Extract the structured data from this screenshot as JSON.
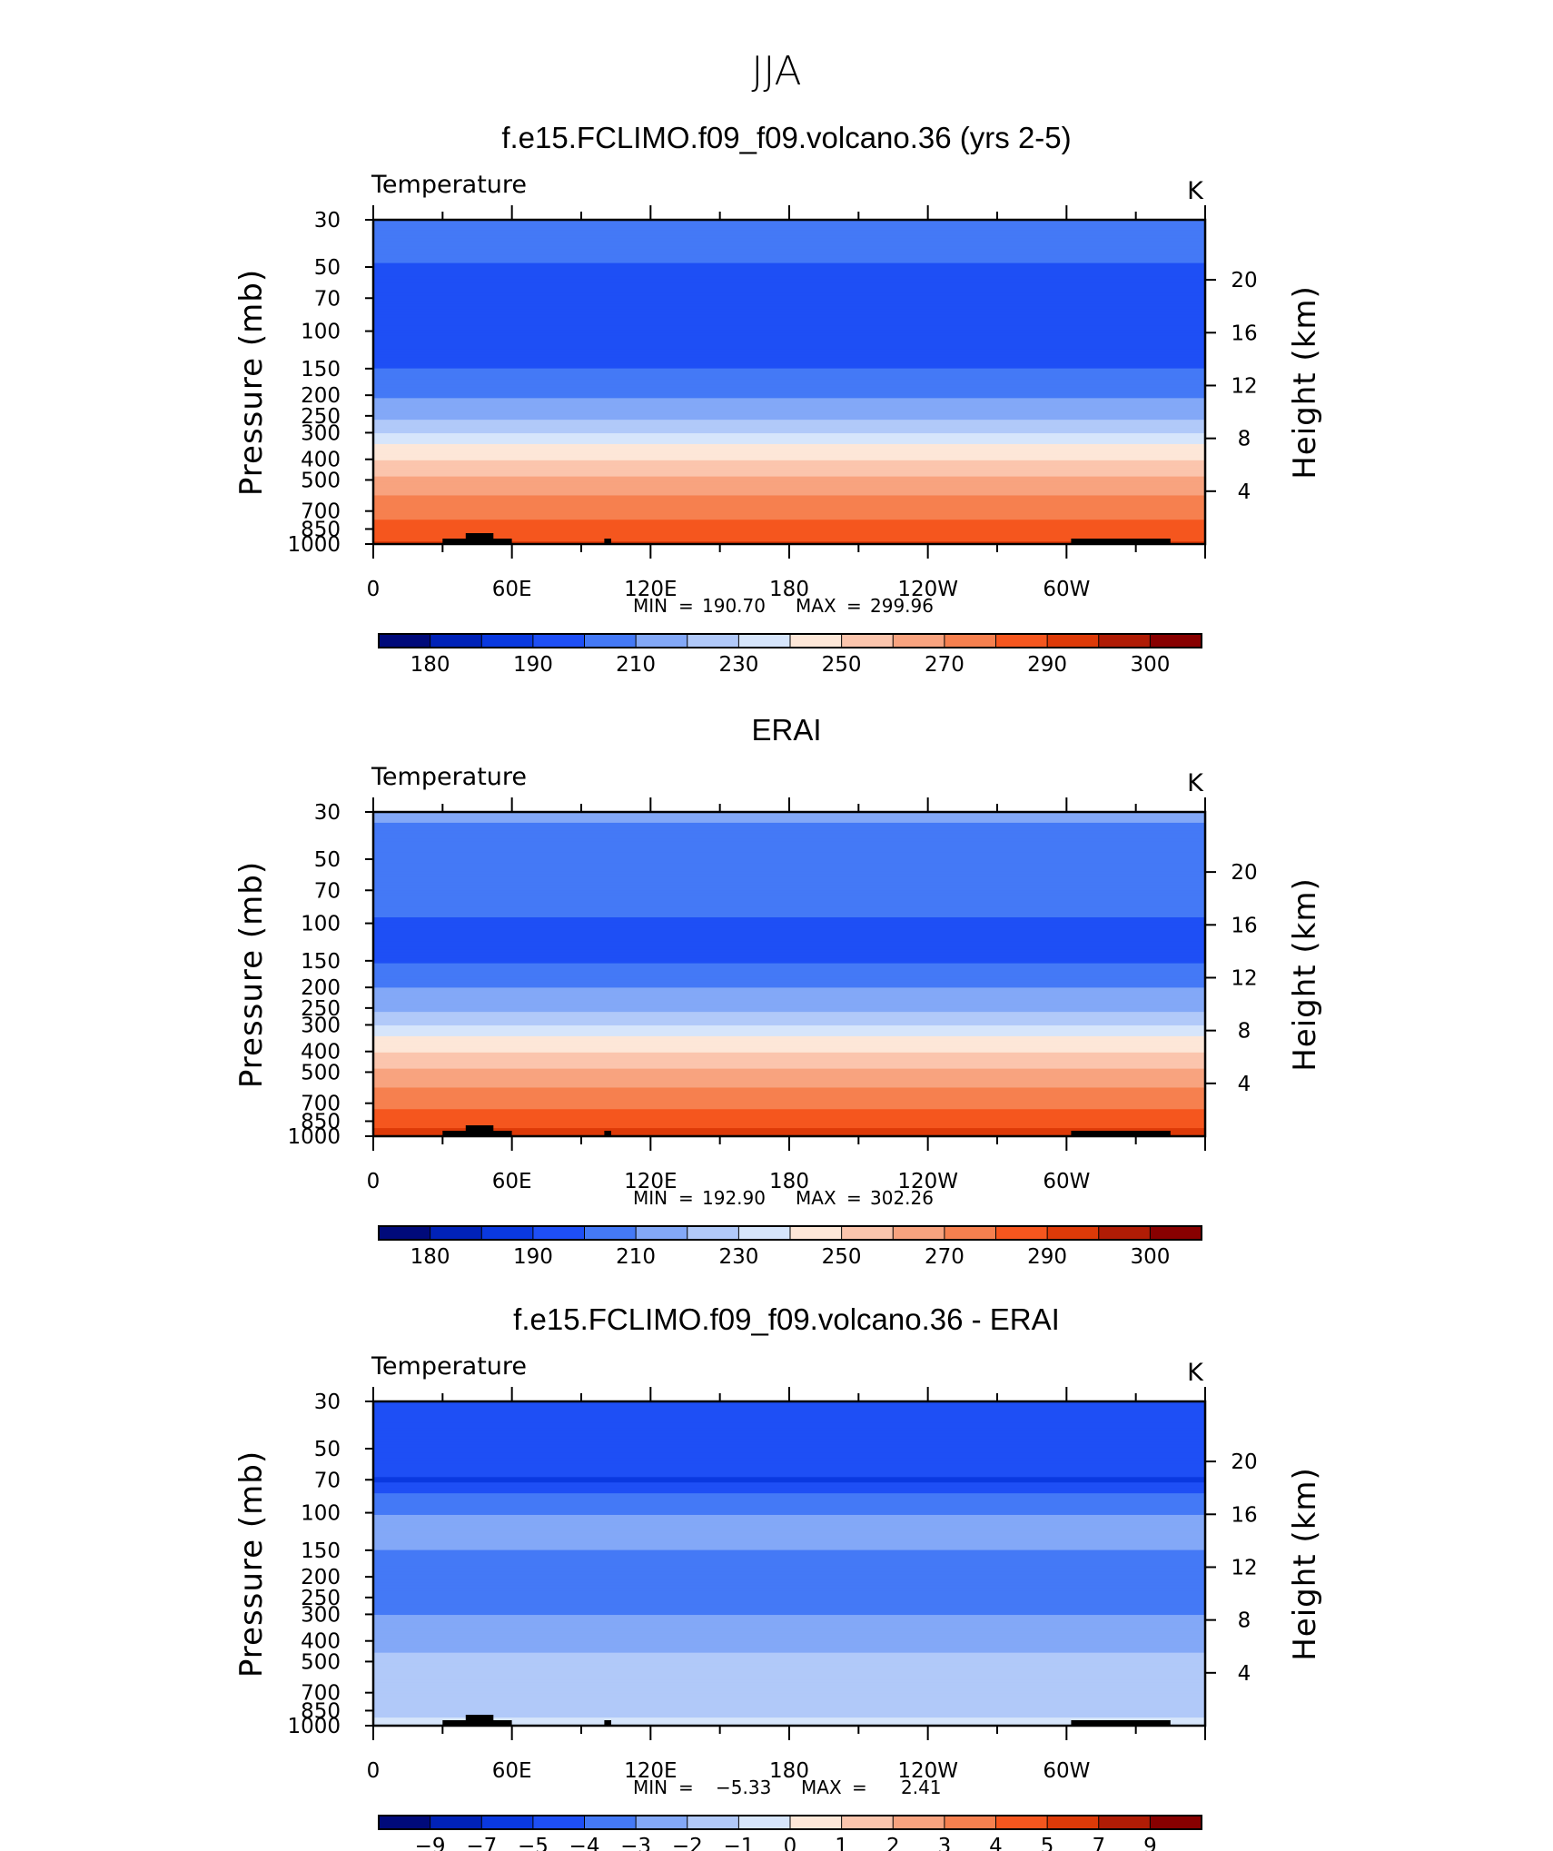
{
  "figure": {
    "title": "JJA",
    "panel_titles": [
      "f.e15.FCLIMO.f09_f09.volcano.36 (yrs 2-5)",
      "ERAI",
      "f.e15.FCLIMO.f09_f09.volcano.36 - ERAI"
    ],
    "variable_label": "Temperature",
    "units_label": "K",
    "yaxis_left_label": "Pressure (mb)",
    "yaxis_right_label": "Height (km)",
    "stats": [
      {
        "min_label": "MIN",
        "min": "190.70",
        "max_label": "MAX",
        "max": "299.96"
      },
      {
        "min_label": "MIN",
        "min": "192.90",
        "max_label": "MAX",
        "max": "302.26"
      },
      {
        "min_label": "MIN",
        "min": "−5.33",
        "max_label": "MAX",
        "max": "2.41"
      }
    ]
  },
  "chart_data": [
    {
      "type": "heatmap",
      "title": "f.e15.FCLIMO.f09_f09.volcano.36 (yrs 2-5)",
      "x_tick_labels": [
        "0",
        "60E",
        "120E",
        "180",
        "120W",
        "60W"
      ],
      "x_tick_lon": [
        0,
        60,
        120,
        180,
        240,
        300
      ],
      "x_range": [
        0,
        360
      ],
      "y_tick_labels": [
        "30",
        "50",
        "70",
        "100",
        "150",
        "200",
        "250",
        "300",
        "400",
        "500",
        "700",
        "850",
        "1000"
      ],
      "y_range_mb": [
        1000,
        30
      ],
      "y_log": true,
      "right_tick_labels": [
        "20",
        "16",
        "12",
        "8",
        "4"
      ],
      "contour_levels": [
        175,
        180,
        185,
        190,
        200,
        210,
        220,
        230,
        240,
        250,
        260,
        270,
        280,
        290,
        295,
        300
      ],
      "colorbar_labels": [
        "180",
        "190",
        "210",
        "230",
        "250",
        "270",
        "290",
        "300"
      ],
      "colorbar_label_index": [
        1,
        3,
        5,
        7,
        9,
        11,
        13,
        15
      ],
      "layers": [
        {
          "p": 30,
          "v": 205
        },
        {
          "p": 40,
          "v": 202
        },
        {
          "p": 70,
          "v": 196
        },
        {
          "p": 130,
          "v": 196
        },
        {
          "p": 170,
          "v": 204
        },
        {
          "p": 240,
          "v": 214
        },
        {
          "p": 290,
          "v": 226
        },
        {
          "p": 340,
          "v": 241
        },
        {
          "p": 420,
          "v": 252
        },
        {
          "p": 500,
          "v": 262
        },
        {
          "p": 620,
          "v": 272
        },
        {
          "p": 780,
          "v": 281
        },
        {
          "p": 1000,
          "v": 291
        }
      ]
    },
    {
      "type": "heatmap",
      "title": "ERAI",
      "x_tick_labels": [
        "0",
        "60E",
        "120E",
        "180",
        "120W",
        "60W"
      ],
      "x_tick_lon": [
        0,
        60,
        120,
        180,
        240,
        300
      ],
      "x_range": [
        0,
        360
      ],
      "y_tick_labels": [
        "30",
        "50",
        "70",
        "100",
        "150",
        "200",
        "250",
        "300",
        "400",
        "500",
        "700",
        "850",
        "1000"
      ],
      "y_range_mb": [
        1000,
        30
      ],
      "y_log": true,
      "right_tick_labels": [
        "20",
        "16",
        "12",
        "8",
        "4"
      ],
      "contour_levels": [
        175,
        180,
        185,
        190,
        200,
        210,
        220,
        230,
        240,
        250,
        260,
        270,
        280,
        290,
        295,
        300
      ],
      "colorbar_labels": [
        "180",
        "190",
        "210",
        "230",
        "250",
        "270",
        "290",
        "300"
      ],
      "colorbar_label_index": [
        1,
        3,
        5,
        7,
        9,
        11,
        13,
        15
      ],
      "layers": [
        {
          "p": 30,
          "v": 212
        },
        {
          "p": 45,
          "v": 205
        },
        {
          "p": 70,
          "v": 203
        },
        {
          "p": 140,
          "v": 196
        },
        {
          "p": 175,
          "v": 206
        },
        {
          "p": 240,
          "v": 215
        },
        {
          "p": 290,
          "v": 226
        },
        {
          "p": 340,
          "v": 241
        },
        {
          "p": 420,
          "v": 252
        },
        {
          "p": 500,
          "v": 262
        },
        {
          "p": 620,
          "v": 272
        },
        {
          "p": 780,
          "v": 282
        },
        {
          "p": 1000,
          "v": 294
        }
      ]
    },
    {
      "type": "heatmap",
      "title": "f.e15.FCLIMO.f09_f09.volcano.36 - ERAI",
      "x_tick_labels": [
        "0",
        "60E",
        "120E",
        "180",
        "120W",
        "60W"
      ],
      "x_tick_lon": [
        0,
        60,
        120,
        180,
        240,
        300
      ],
      "x_range": [
        0,
        360
      ],
      "y_tick_labels": [
        "30",
        "50",
        "70",
        "100",
        "150",
        "200",
        "250",
        "300",
        "400",
        "500",
        "700",
        "850",
        "1000"
      ],
      "y_range_mb": [
        1000,
        30
      ],
      "y_log": true,
      "right_tick_labels": [
        "20",
        "16",
        "12",
        "8",
        "4"
      ],
      "contour_levels": [
        -10,
        -9,
        -7,
        -5,
        -4,
        -3,
        -2,
        -1,
        0,
        1,
        2,
        3,
        4,
        5,
        7,
        9
      ],
      "colorbar_labels": [
        "−9",
        "−7",
        "−5",
        "−4",
        "−3",
        "−2",
        "−1",
        "0",
        "1",
        "2",
        "3",
        "4",
        "5",
        "7",
        "9"
      ],
      "colorbar_label_index": [
        1,
        2,
        3,
        4,
        5,
        6,
        7,
        8,
        9,
        10,
        11,
        12,
        13,
        14,
        15
      ],
      "layers": [
        {
          "p": 30,
          "v": -4.5
        },
        {
          "p": 60,
          "v": -4.2
        },
        {
          "p": 70,
          "v": -5.2
        },
        {
          "p": 85,
          "v": -3.5
        },
        {
          "p": 120,
          "v": -2.5
        },
        {
          "p": 180,
          "v": -3.4
        },
        {
          "p": 230,
          "v": -3.2
        },
        {
          "p": 280,
          "v": -3.5
        },
        {
          "p": 320,
          "v": -2.5
        },
        {
          "p": 420,
          "v": -2.3
        },
        {
          "p": 520,
          "v": -1.5
        },
        {
          "p": 700,
          "v": -1.6
        },
        {
          "p": 850,
          "v": -1.5
        },
        {
          "p": 1000,
          "v": -0.5
        }
      ]
    }
  ],
  "colors": {
    "palette": [
      "#000a7a",
      "#0022b8",
      "#0a39e0",
      "#1e4ff5",
      "#4479f6",
      "#83a8f7",
      "#b1c9f9",
      "#d6e5fb",
      "#fde7d8",
      "#fbc5ad",
      "#f8a37f",
      "#f6804f",
      "#f5561e",
      "#dd3a08",
      "#b01c05",
      "#880000"
    ],
    "frame": "#000000",
    "topography": "#000000"
  }
}
